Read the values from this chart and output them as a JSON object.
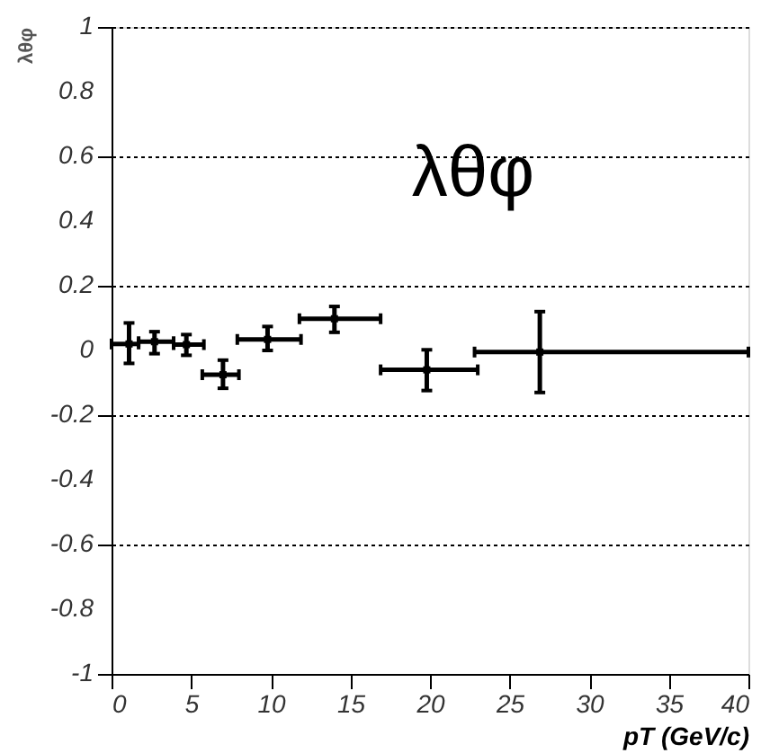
{
  "chart_data": {
    "type": "scatter",
    "xlabel": "pT  (GeV/c)",
    "ylabel": "λθφ",
    "annotations": [
      "λθφ"
    ],
    "x": [
      1.1,
      2.7,
      4.7,
      7.0,
      9.8,
      14.0,
      19.8,
      26.9
    ],
    "values": [
      0.02,
      0.027,
      0.018,
      -0.075,
      0.034,
      0.098,
      -0.06,
      -0.005
    ],
    "errors": [
      [
        -0.04,
        0.085
      ],
      [
        -0.01,
        0.058
      ],
      [
        -0.015,
        0.049
      ],
      [
        -0.117,
        -0.03
      ],
      [
        0.0,
        0.074
      ],
      [
        0.056,
        0.136
      ],
      [
        -0.124,
        0.002
      ],
      [
        -0.13,
        0.12
      ]
    ],
    "xerrors": [
      [
        0.0,
        1.7
      ],
      [
        1.7,
        3.9
      ],
      [
        3.9,
        5.8
      ],
      [
        5.7,
        8.0
      ],
      [
        7.9,
        11.9
      ],
      [
        11.8,
        16.9
      ],
      [
        16.9,
        23.0
      ],
      [
        22.8,
        40.0
      ]
    ],
    "color": "#000000",
    "xlim": [
      0,
      40
    ],
    "xticks": [
      0,
      5,
      10,
      15,
      20,
      25,
      30,
      35,
      40
    ],
    "ylim": [
      -1,
      1
    ],
    "yticks": [
      {
        "value": -1,
        "label": "-1"
      },
      {
        "value": -0.8,
        "label": "-0.8"
      },
      {
        "value": -0.6,
        "label": "-0.6"
      },
      {
        "value": -0.4,
        "label": "-0.4"
      },
      {
        "value": -0.2,
        "label": "-0.2"
      },
      {
        "value": 0,
        "label": "0"
      },
      {
        "value": 0.2,
        "label": "0.2"
      },
      {
        "value": 0.4,
        "label": "0.4"
      },
      {
        "value": 0.6,
        "label": "0.6"
      },
      {
        "value": 0.8,
        "label": "0.8"
      },
      {
        "value": 1,
        "label": "1"
      }
    ],
    "grid": "y"
  }
}
